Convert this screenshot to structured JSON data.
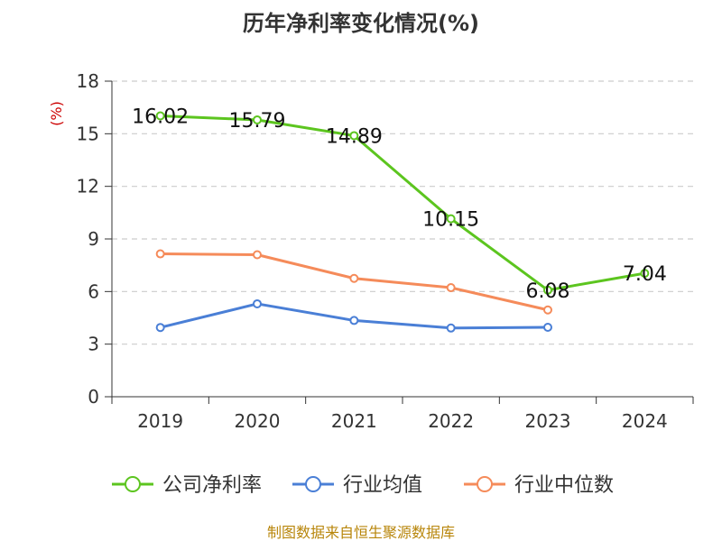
{
  "chart_data": {
    "type": "line",
    "title": "历年净利率变化情况(%)",
    "ylabel": "(%)",
    "xlabel": "",
    "categories": [
      "2019",
      "2020",
      "2021",
      "2022",
      "2023",
      "2024"
    ],
    "ylim": [
      0,
      18
    ],
    "yticks": [
      0,
      3,
      6,
      9,
      12,
      15,
      18
    ],
    "grid": true,
    "legend_position": "bottom",
    "series": [
      {
        "name": "公司净利率",
        "color": "#5cc51f",
        "values": [
          16.02,
          15.79,
          14.89,
          10.15,
          6.08,
          7.04
        ],
        "labels": [
          "16.02",
          "15.79",
          "14.89",
          "10.15",
          "6.08",
          "7.04"
        ]
      },
      {
        "name": "行业均值",
        "color": "#4a7fd6",
        "values": [
          3.95,
          5.3,
          4.35,
          3.92,
          3.96,
          null
        ]
      },
      {
        "name": "行业中位数",
        "color": "#f58b5a",
        "values": [
          8.15,
          8.1,
          6.75,
          6.22,
          4.95,
          null
        ]
      }
    ],
    "source": "制图数据来自恒生聚源数据库"
  }
}
